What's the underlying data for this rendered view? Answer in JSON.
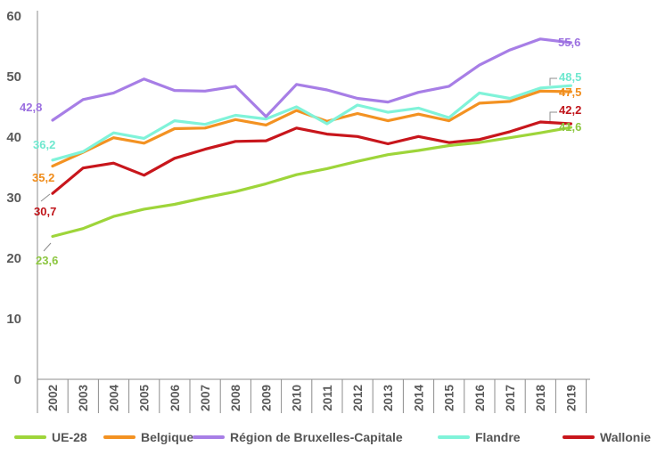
{
  "chart_data": {
    "type": "line",
    "title": "",
    "xlabel": "",
    "ylabel": "",
    "ylim": [
      0,
      60
    ],
    "y_ticks": [
      "0",
      "10",
      "20",
      "30",
      "40",
      "50",
      "60"
    ],
    "x": [
      "2002",
      "2003",
      "2004",
      "2005",
      "2006",
      "2007",
      "2008",
      "2009",
      "2010",
      "2011",
      "2012",
      "2013",
      "2014",
      "2015",
      "2016",
      "2017",
      "2018",
      "2019"
    ],
    "grid": "none",
    "legend": "bottom",
    "series": [
      {
        "name": "UE-28",
        "color": "#9ed53a",
        "values": [
          23.6,
          24.9,
          26.9,
          28.1,
          28.9,
          30.0,
          31.0,
          32.3,
          33.8,
          34.8,
          36.0,
          37.1,
          37.8,
          38.6,
          39.1,
          39.9,
          40.7,
          41.6
        ],
        "start_label": "23,6",
        "end_label": "41,6"
      },
      {
        "name": "Belgique",
        "color": "#f39222",
        "values": [
          35.2,
          37.5,
          39.9,
          39.0,
          41.4,
          41.5,
          42.9,
          42.0,
          44.4,
          42.6,
          43.9,
          42.7,
          43.8,
          42.7,
          45.6,
          45.9,
          47.6,
          47.5
        ],
        "start_label": "35,2",
        "end_label": "47,5"
      },
      {
        "name": "Région de Bruxelles-Capitale",
        "color": "#a77ee6",
        "values": [
          42.8,
          46.2,
          47.3,
          49.6,
          47.7,
          47.6,
          48.4,
          43.4,
          48.7,
          47.8,
          46.4,
          45.8,
          47.4,
          48.4,
          51.9,
          54.4,
          56.2,
          55.6
        ],
        "start_label": "42,8",
        "end_label": "55,6"
      },
      {
        "name": "Flandre",
        "color": "#80f3d9",
        "values": [
          36.2,
          37.6,
          40.7,
          39.8,
          42.7,
          42.1,
          43.6,
          43.0,
          45.0,
          42.2,
          45.3,
          44.1,
          44.8,
          43.2,
          47.3,
          46.4,
          48.1,
          48.5
        ],
        "start_label": "36,2",
        "end_label": "48,5"
      },
      {
        "name": "Wallonie",
        "color": "#c8161c",
        "values": [
          30.7,
          34.9,
          35.7,
          33.7,
          36.5,
          38.0,
          39.3,
          39.4,
          41.5,
          40.5,
          40.1,
          38.9,
          40.1,
          39.1,
          39.6,
          40.9,
          42.5,
          42.2
        ],
        "start_label": "30,7",
        "end_label": "42,2"
      }
    ]
  }
}
